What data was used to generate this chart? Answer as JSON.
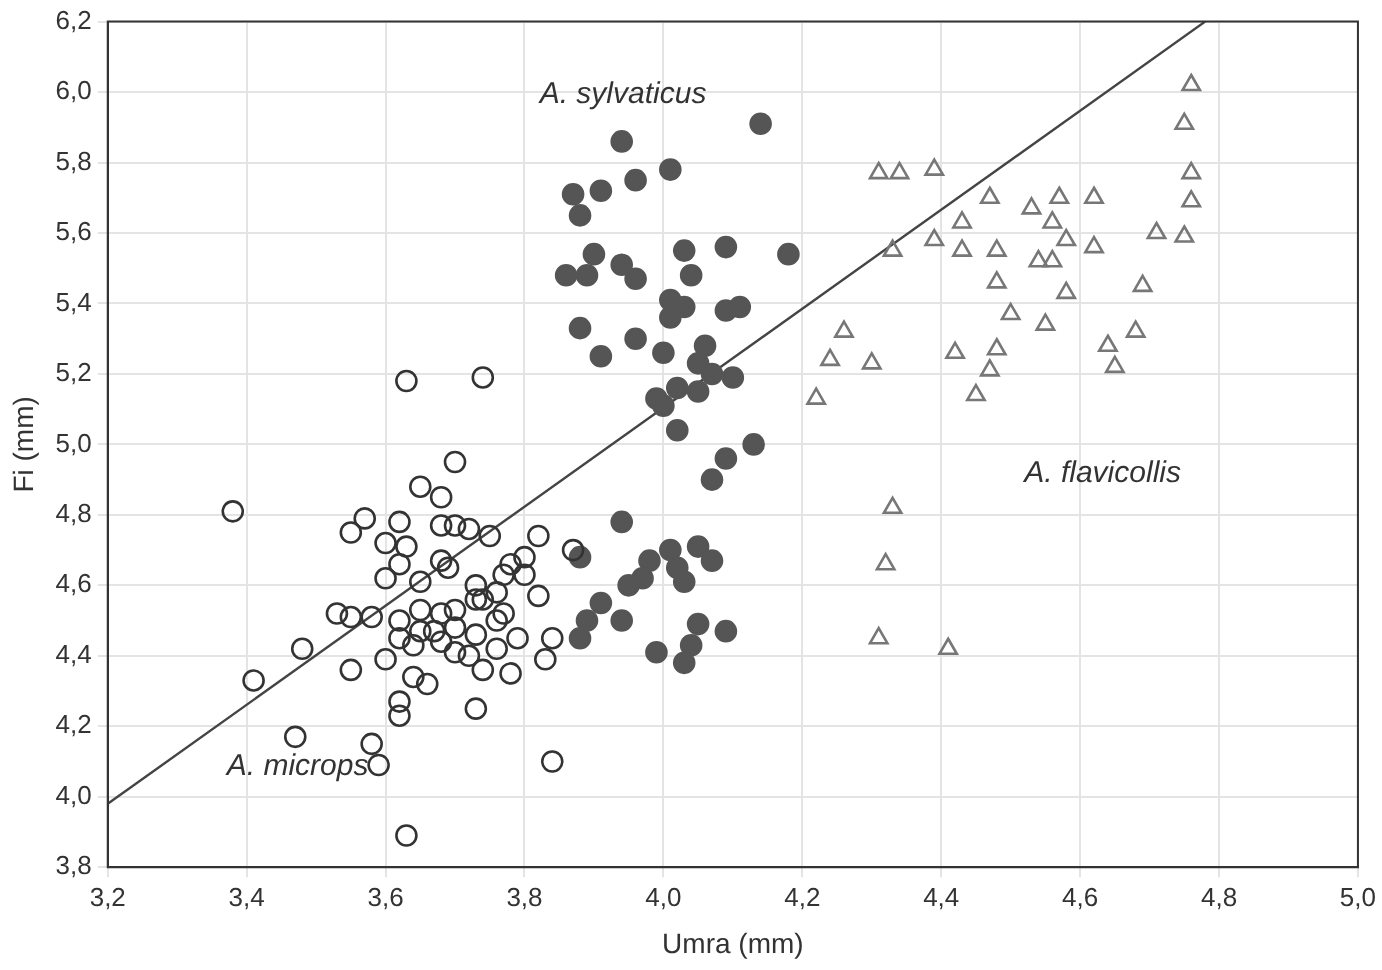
{
  "chart_data": {
    "type": "scatter",
    "xlabel": "Umra (mm)",
    "ylabel": "Fi (mm)",
    "xlim": [
      3.2,
      5.0
    ],
    "ylim": [
      3.8,
      6.2
    ],
    "xticks": [
      {
        "value": 3.2,
        "label": "3,2"
      },
      {
        "value": 3.4,
        "label": "3,4"
      },
      {
        "value": 3.6,
        "label": "3,6"
      },
      {
        "value": 3.8,
        "label": "3,8"
      },
      {
        "value": 4.0,
        "label": "4,0"
      },
      {
        "value": 4.2,
        "label": "4,2"
      },
      {
        "value": 4.4,
        "label": "4,4"
      },
      {
        "value": 4.6,
        "label": "4,6"
      },
      {
        "value": 4.8,
        "label": "4,8"
      },
      {
        "value": 5.0,
        "label": "5,0"
      }
    ],
    "yticks": [
      {
        "value": 3.8,
        "label": "3,8"
      },
      {
        "value": 4.0,
        "label": "4,0"
      },
      {
        "value": 4.2,
        "label": "4,2"
      },
      {
        "value": 4.4,
        "label": "4,4"
      },
      {
        "value": 4.6,
        "label": "4,6"
      },
      {
        "value": 4.8,
        "label": "4,8"
      },
      {
        "value": 5.0,
        "label": "5,0"
      },
      {
        "value": 5.2,
        "label": "5,2"
      },
      {
        "value": 5.4,
        "label": "5,4"
      },
      {
        "value": 5.6,
        "label": "5,6"
      },
      {
        "value": 5.8,
        "label": "5,8"
      },
      {
        "value": 6.0,
        "label": "6,0"
      },
      {
        "value": 6.2,
        "label": "6,2"
      }
    ],
    "grid": true,
    "legend": false,
    "series": [
      {
        "name": "A. microps",
        "marker": "circle",
        "color": "#333333",
        "x": [
          3.63,
          3.74,
          3.38,
          3.7,
          3.65,
          3.68,
          3.57,
          3.55,
          3.62,
          3.6,
          3.63,
          3.68,
          3.7,
          3.72,
          3.75,
          3.62,
          3.6,
          3.68,
          3.69,
          3.65,
          3.78,
          3.8,
          3.8,
          3.77,
          3.82,
          3.82,
          3.73,
          3.76,
          3.74,
          3.53,
          3.55,
          3.58,
          3.62,
          3.65,
          3.68,
          3.7,
          3.73,
          3.76,
          3.73,
          3.76,
          3.79,
          3.62,
          3.64,
          3.68,
          3.7,
          3.72,
          3.74,
          3.78,
          3.83,
          3.84,
          3.48,
          3.6,
          3.55,
          3.41,
          3.64,
          3.66,
          3.62,
          3.62,
          3.73,
          3.47,
          3.58,
          3.59,
          3.84,
          3.63,
          3.65,
          3.77,
          3.7,
          3.67,
          3.87
        ],
        "values": [
          5.18,
          5.19,
          4.81,
          4.95,
          4.88,
          4.85,
          4.79,
          4.75,
          4.78,
          4.72,
          4.71,
          4.77,
          4.77,
          4.76,
          4.74,
          4.66,
          4.62,
          4.67,
          4.65,
          4.61,
          4.66,
          4.68,
          4.63,
          4.63,
          4.74,
          4.57,
          4.6,
          4.58,
          4.56,
          4.52,
          4.51,
          4.51,
          4.5,
          4.53,
          4.52,
          4.53,
          4.56,
          4.5,
          4.46,
          4.42,
          4.45,
          4.45,
          4.43,
          4.44,
          4.41,
          4.4,
          4.36,
          4.35,
          4.39,
          4.45,
          4.42,
          4.39,
          4.36,
          4.33,
          4.34,
          4.32,
          4.27,
          4.23,
          4.25,
          4.17,
          4.15,
          4.09,
          4.1,
          3.89,
          4.47,
          4.52,
          4.48,
          4.47,
          4.7
        ]
      },
      {
        "name": "A. sylvaticus",
        "marker": "circle",
        "color": "#555555",
        "x": [
          4.14,
          3.94,
          4.01,
          3.96,
          3.91,
          3.87,
          3.88,
          3.9,
          3.89,
          3.86,
          3.94,
          3.96,
          4.03,
          4.09,
          4.18,
          4.04,
          4.01,
          4.03,
          4.01,
          4.09,
          4.11,
          3.88,
          3.91,
          3.96,
          4.0,
          4.06,
          4.05,
          4.07,
          4.1,
          4.05,
          3.99,
          4.02,
          4.0,
          4.02,
          4.13,
          4.09,
          4.07,
          3.94,
          3.88,
          3.98,
          4.01,
          4.05,
          4.07,
          4.03,
          3.95,
          3.97,
          3.91,
          3.89,
          3.94,
          3.88,
          4.05,
          4.09,
          4.04,
          4.03,
          3.99,
          4.02
        ],
        "values": [
          5.91,
          5.86,
          5.78,
          5.75,
          5.72,
          5.71,
          5.65,
          5.54,
          5.48,
          5.48,
          5.51,
          5.47,
          5.55,
          5.56,
          5.54,
          5.48,
          5.41,
          5.39,
          5.36,
          5.38,
          5.39,
          5.33,
          5.25,
          5.3,
          5.26,
          5.28,
          5.23,
          5.2,
          5.19,
          5.15,
          5.13,
          5.16,
          5.11,
          5.04,
          5.0,
          4.96,
          4.9,
          4.78,
          4.68,
          4.67,
          4.7,
          4.71,
          4.67,
          4.61,
          4.6,
          4.62,
          4.55,
          4.5,
          4.5,
          4.45,
          4.49,
          4.47,
          4.43,
          4.38,
          4.41,
          4.65
        ]
      },
      {
        "name": "A. flavicollis",
        "marker": "triangle",
        "color": "#777777",
        "x": [
          4.76,
          4.75,
          4.76,
          4.76,
          4.75,
          4.71,
          4.31,
          4.34,
          4.39,
          4.47,
          4.53,
          4.57,
          4.62,
          4.56,
          4.43,
          4.39,
          4.33,
          4.43,
          4.48,
          4.54,
          4.56,
          4.58,
          4.62,
          4.48,
          4.58,
          4.69,
          4.5,
          4.55,
          4.68,
          4.26,
          4.24,
          4.3,
          4.42,
          4.48,
          4.47,
          4.64,
          4.65,
          4.22,
          4.45,
          4.33,
          4.32,
          4.31,
          4.41
        ],
        "values": [
          6.02,
          5.91,
          5.77,
          5.69,
          5.59,
          5.6,
          5.77,
          5.77,
          5.78,
          5.7,
          5.67,
          5.7,
          5.7,
          5.63,
          5.63,
          5.58,
          5.55,
          5.55,
          5.55,
          5.52,
          5.52,
          5.58,
          5.56,
          5.46,
          5.43,
          5.45,
          5.37,
          5.34,
          5.32,
          5.32,
          5.24,
          5.23,
          5.26,
          5.27,
          5.21,
          5.28,
          5.22,
          5.13,
          5.14,
          4.82,
          4.66,
          4.45,
          4.42
        ]
      },
      {
        "type": "line",
        "marker": "none",
        "color": "#444444",
        "x": [
          3.2,
          4.78
        ],
        "values": [
          3.98,
          6.2
        ]
      }
    ]
  }
}
